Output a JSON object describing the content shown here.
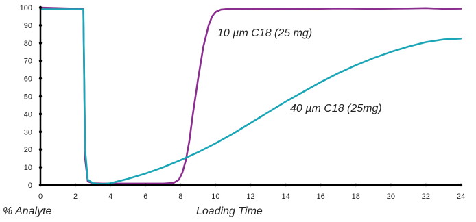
{
  "chart_data": {
    "type": "line",
    "xlabel": "Loading Time",
    "ylabel": "% Analyte",
    "xlim": [
      0,
      24
    ],
    "ylim": [
      0,
      100
    ],
    "x_ticks": [
      0,
      2,
      4,
      6,
      8,
      10,
      12,
      14,
      16,
      18,
      20,
      22,
      24
    ],
    "y_ticks": [
      0,
      10,
      20,
      30,
      40,
      50,
      60,
      70,
      80,
      90,
      100
    ],
    "grid": false,
    "series": [
      {
        "name": "10 µm C18 (25 mg)",
        "color": "#8B2E8F",
        "x": [
          0,
          1,
          2,
          2.45,
          2.55,
          2.7,
          3.0,
          3.5,
          4,
          5,
          6,
          7,
          7.6,
          7.9,
          8.1,
          8.3,
          8.5,
          8.7,
          9.0,
          9.3,
          9.6,
          9.8,
          10.0,
          10.3,
          10.7,
          11.5,
          13,
          15,
          17,
          19,
          21,
          22,
          23,
          24
        ],
        "y": [
          100,
          99.7,
          99.4,
          99.2,
          15,
          2,
          1,
          0.8,
          0.8,
          0.8,
          0.8,
          0.8,
          1.2,
          3,
          7,
          14,
          25,
          40,
          60,
          78,
          90,
          95,
          97.5,
          98.8,
          99.2,
          99.2,
          99.3,
          99.2,
          99.5,
          99.3,
          99.5,
          99.7,
          99.3,
          99.4
        ]
      },
      {
        "name": "40 µm C18 (25mg)",
        "color": "#1AA6B7",
        "x": [
          0,
          1,
          2,
          2.45,
          2.55,
          2.7,
          3.0,
          3.3,
          3.7,
          4,
          5,
          6,
          7,
          8,
          9,
          10,
          11,
          12,
          13,
          14,
          15,
          16,
          17,
          18,
          19,
          20,
          21,
          22,
          23,
          24
        ],
        "y": [
          99,
          99,
          99,
          99,
          20,
          3,
          1,
          0.6,
          0.6,
          1,
          3.5,
          6.5,
          10,
          14,
          18.5,
          23.5,
          29,
          35,
          41,
          47,
          52.5,
          58,
          63,
          67.5,
          71.5,
          75,
          78,
          80.5,
          82,
          82.5
        ]
      }
    ]
  }
}
